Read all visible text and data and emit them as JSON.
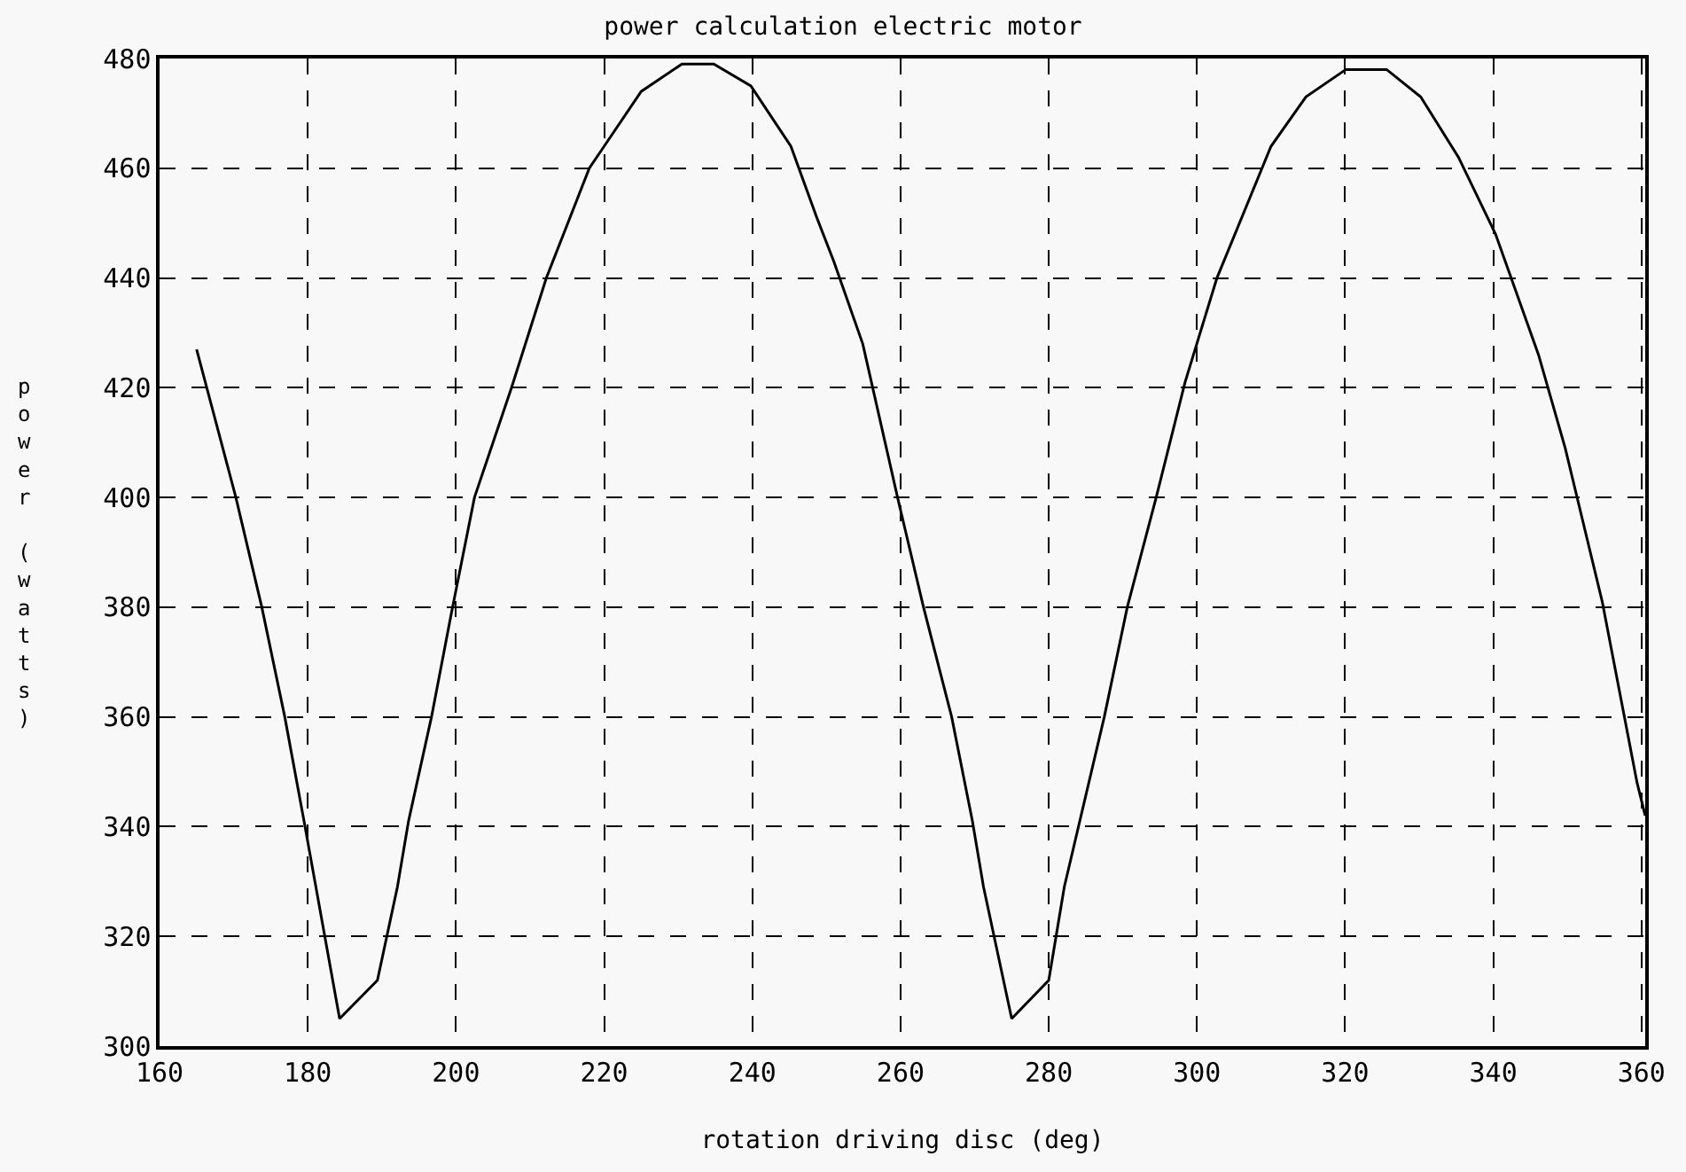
{
  "chart_data": {
    "type": "line",
    "title": "power calculation electric motor",
    "xlabel": "rotation driving disc (deg)",
    "ylabel": "power (watts)",
    "x": [
      165.0,
      170.3,
      173.8,
      176.9,
      179.5,
      184.3,
      189.4,
      192.1,
      193.6,
      196.7,
      199.4,
      202.5,
      207.5,
      212.2,
      218,
      220,
      225,
      230.5,
      234.8,
      239.8,
      245.2,
      248.7,
      251,
      254.9,
      259.6,
      263.1,
      266.9,
      269.7,
      271.2,
      275,
      280,
      282.1,
      287.5,
      290.6,
      294.5,
      298.4,
      302.7,
      310,
      314.7,
      320.1,
      325.6,
      330.2,
      335.3,
      340.3,
      346.1,
      349.7,
      354.7,
      359.4,
      360.5
    ],
    "series": [
      {
        "color": "#000000",
        "values": [
          427,
          400,
          380,
          360,
          341,
          305,
          312,
          329,
          341,
          360,
          379,
          400,
          420,
          440,
          460,
          464,
          474,
          479,
          479,
          475,
          464,
          451,
          443,
          428,
          400,
          380,
          360,
          341,
          329,
          305,
          312,
          329,
          360,
          380,
          400,
          421,
          440,
          464,
          473,
          478,
          478,
          473,
          462,
          448,
          426,
          409,
          381,
          348,
          342
        ]
      }
    ],
    "xlim": [
      160,
      360.5
    ],
    "xticks": [
      160,
      180,
      200,
      220,
      240,
      260,
      280,
      300,
      320,
      340,
      360
    ],
    "ylim": [
      300,
      480
    ],
    "yticks": [
      300,
      320,
      340,
      360,
      380,
      400,
      420,
      440,
      460,
      480
    ],
    "grid": true,
    "line_style": "solid"
  }
}
